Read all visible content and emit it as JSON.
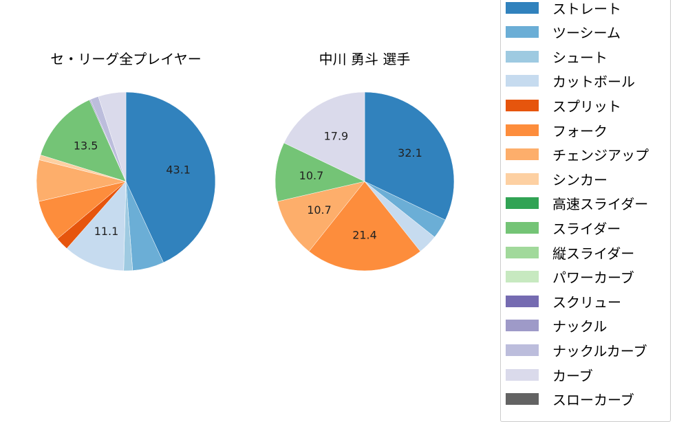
{
  "chart_data": [
    {
      "type": "pie",
      "title": "セ・リーグ全プレイヤー",
      "start_angle": 90,
      "direction": "clockwise",
      "center": [
        183,
        264
      ],
      "radius": 130,
      "slices": [
        {
          "label": "ストレート",
          "value": 43.1,
          "color": "#3182bd",
          "show_label": true
        },
        {
          "label": "ツーシーム",
          "value": 5.7,
          "color": "#6baed6",
          "show_label": false
        },
        {
          "label": "シュート",
          "value": 1.6,
          "color": "#9ecae1",
          "show_label": false
        },
        {
          "label": "カットボール",
          "value": 11.1,
          "color": "#c6dbef",
          "show_label": true
        },
        {
          "label": "スプリット",
          "value": 2.4,
          "color": "#e6550d",
          "show_label": false
        },
        {
          "label": "フォーク",
          "value": 7.5,
          "color": "#fd8d3c",
          "show_label": false
        },
        {
          "label": "チェンジアップ",
          "value": 7.5,
          "color": "#fdae6b",
          "show_label": false
        },
        {
          "label": "シンカー",
          "value": 0.9,
          "color": "#fdd0a2",
          "show_label": false
        },
        {
          "label": "スライダー",
          "value": 13.5,
          "color": "#74c476",
          "show_label": true
        },
        {
          "label": "ナックル",
          "value": 0.2,
          "color": "#9e9ac8",
          "show_label": false
        },
        {
          "label": "ナックルカーブ",
          "value": 1.5,
          "color": "#bcbddc",
          "show_label": false
        },
        {
          "label": "カーブ",
          "value": 5.0,
          "color": "#dadaeb",
          "show_label": false
        }
      ]
    },
    {
      "type": "pie",
      "title": "中川 勇斗  選手",
      "start_angle": 90,
      "direction": "clockwise",
      "center": [
        530,
        264
      ],
      "radius": 130,
      "slices": [
        {
          "label": "ストレート",
          "value": 32.1,
          "color": "#3182bd",
          "show_label": true
        },
        {
          "label": "ツーシーム",
          "value": 3.6,
          "color": "#6baed6",
          "show_label": false
        },
        {
          "label": "カットボール",
          "value": 3.6,
          "color": "#c6dbef",
          "show_label": false
        },
        {
          "label": "フォーク",
          "value": 21.4,
          "color": "#fd8d3c",
          "show_label": true
        },
        {
          "label": "チェンジアップ",
          "value": 10.7,
          "color": "#fdae6b",
          "show_label": true
        },
        {
          "label": "スライダー",
          "value": 10.7,
          "color": "#74c476",
          "show_label": true
        },
        {
          "label": "カーブ",
          "value": 17.9,
          "color": "#dadaeb",
          "show_label": true
        }
      ]
    }
  ],
  "titles": {
    "left": "セ・リーグ全プレイヤー",
    "right": "中川 勇斗  選手"
  },
  "legend": {
    "items": [
      {
        "label": "ストレート",
        "color": "#3182bd"
      },
      {
        "label": "ツーシーム",
        "color": "#6baed6"
      },
      {
        "label": "シュート",
        "color": "#9ecae1"
      },
      {
        "label": "カットボール",
        "color": "#c6dbef"
      },
      {
        "label": "スプリット",
        "color": "#e6550d"
      },
      {
        "label": "フォーク",
        "color": "#fd8d3c"
      },
      {
        "label": "チェンジアップ",
        "color": "#fdae6b"
      },
      {
        "label": "シンカー",
        "color": "#fdd0a2"
      },
      {
        "label": "高速スライダー",
        "color": "#31a354"
      },
      {
        "label": "スライダー",
        "color": "#74c476"
      },
      {
        "label": "縦スライダー",
        "color": "#a1d99b"
      },
      {
        "label": "パワーカーブ",
        "color": "#c7e9c0"
      },
      {
        "label": "スクリュー",
        "color": "#756bb1"
      },
      {
        "label": "ナックル",
        "color": "#9e9ac8"
      },
      {
        "label": "ナックルカーブ",
        "color": "#bcbddc"
      },
      {
        "label": "カーブ",
        "color": "#dadaeb"
      },
      {
        "label": "スローカーブ",
        "color": "#636363"
      }
    ]
  }
}
